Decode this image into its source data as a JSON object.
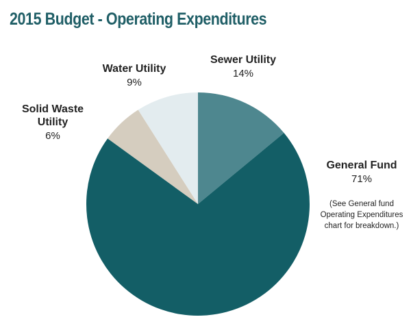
{
  "chart_data": {
    "type": "pie",
    "title": "2015 Budget - Operating Expenditures",
    "categories": [
      "Sewer Utility",
      "General Fund",
      "Solid Waste Utility",
      "Water Utility"
    ],
    "values": [
      14,
      71,
      6,
      9
    ],
    "value_labels": [
      "14%",
      "71%",
      "6%",
      "9%"
    ],
    "colors": [
      "#4e878f",
      "#135e66",
      "#d5cdbf",
      "#e3ecef"
    ],
    "annotation": "(See General fund Operating Expenditures chart for breakdown.)"
  }
}
